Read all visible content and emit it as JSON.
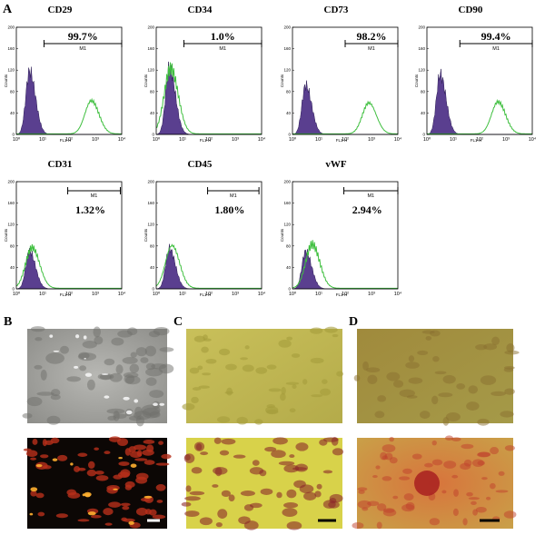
{
  "figure": {
    "panel_labels": {
      "a": "A",
      "b": "B",
      "c": "C",
      "d": "D"
    },
    "axis": {
      "y_label": "Counts",
      "x_label": "FL1-H",
      "y_ticks": [
        "0",
        "40",
        "80",
        "120",
        "160",
        "200"
      ],
      "x_ticks": [
        "10⁰",
        "10¹",
        "10²",
        "10³",
        "10⁴"
      ]
    },
    "histograms": [
      {
        "marker": "CD29",
        "percent": "99.7%",
        "gate": "M1"
      },
      {
        "marker": "CD34",
        "percent": "1.0%",
        "gate": "M1"
      },
      {
        "marker": "CD73",
        "percent": "98.2%",
        "gate": "M1"
      },
      {
        "marker": "CD90",
        "percent": "99.4%",
        "gate": "M1"
      },
      {
        "marker": "CD31",
        "percent": "1.32%",
        "gate": "M1"
      },
      {
        "marker": "CD45",
        "percent": "1.80%",
        "gate": "M1"
      },
      {
        "marker": "vWF",
        "percent": "2.94%",
        "gate": "M1"
      }
    ]
  }
}
